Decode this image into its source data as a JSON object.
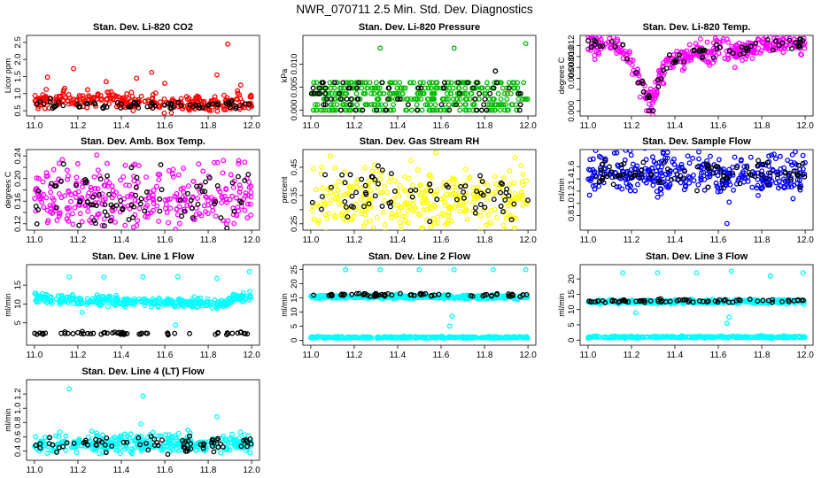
{
  "figure": {
    "title": "NWR_070711  2.5 Min. Std. Dev. Diagnostics"
  },
  "chart_data": [
    {
      "id": "co2",
      "type": "scatter",
      "title": "Stan. Dev. Li-820 CO2",
      "xlabel": "",
      "ylabel": "Licor ppm",
      "xlim": [
        10.98,
        12.02
      ],
      "ylim": [
        0.45,
        2.6
      ],
      "xticks": [
        11.0,
        11.2,
        11.4,
        11.6,
        11.8,
        12.0
      ],
      "yticks": [
        0.5,
        1.0,
        1.5,
        2.0,
        2.5
      ],
      "xtick_labels": [
        "11.0",
        "11.2",
        "11.4",
        "11.6",
        "11.8",
        "12.0"
      ],
      "ytick_labels": [
        "0.5",
        "1.0",
        "1.5",
        "2.0",
        "2.5"
      ],
      "series": [
        {
          "name": "color_band",
          "color": "#ff0000",
          "band": [
            0.72,
            0.08,
            0.35
          ],
          "spread": 0.1,
          "n": 300,
          "x": [
            11.06,
            11.18,
            11.47,
            11.54,
            11.6,
            11.84,
            11.89,
            11.95,
            11.33
          ],
          "y": [
            1.48,
            1.73,
            1.45,
            1.62,
            1.3,
            1.55,
            2.45,
            1.25,
            1.35
          ]
        },
        {
          "name": "black_band",
          "color": "#000000",
          "band": [
            0.66,
            0.0,
            0.03
          ],
          "spread": 0.06,
          "n": 70,
          "x": [],
          "y": []
        }
      ]
    },
    {
      "id": "pres",
      "type": "scatter",
      "title": "Stan. Dev. Li-820 Pressure",
      "xlabel": "",
      "ylabel": "kPa",
      "xlim": [
        10.98,
        12.02
      ],
      "ylim": [
        -0.0005,
        0.0155
      ],
      "xticks": [
        11.0,
        11.2,
        11.4,
        11.6,
        11.8,
        12.0
      ],
      "yticks": [
        0.0,
        0.005,
        0.01
      ],
      "xtick_labels": [
        "11.0",
        "11.2",
        "11.4",
        "11.6",
        "11.8",
        "12.0"
      ],
      "ytick_labels": [
        "0.000",
        "0.005",
        "0.010"
      ],
      "series": [
        {
          "name": "color_levels",
          "color": "#00bb00",
          "levels": [
            0.0,
            0.0012,
            0.0024,
            0.0036,
            0.0048,
            0.006
          ],
          "n": 400,
          "x": [
            11.32,
            11.66,
            11.99,
            11.85
          ],
          "y": [
            0.0135,
            0.0135,
            0.0145,
            0.0085
          ]
        },
        {
          "name": "black_levels",
          "color": "#000000",
          "levels": [
            0.0,
            0.0012,
            0.0024,
            0.0036,
            0.0048,
            0.006
          ],
          "n": 70,
          "x": [
            11.85
          ],
          "y": [
            0.0085
          ]
        }
      ]
    },
    {
      "id": "temp",
      "type": "scatter",
      "title": "Stan. Dev. Li-820 Temp.",
      "xlabel": "",
      "ylabel": "degrees C",
      "xlim": [
        10.98,
        12.02
      ],
      "ylim": [
        -0.0002,
        0.0132
      ],
      "xticks": [
        11.0,
        11.2,
        11.4,
        11.6,
        11.8,
        12.0
      ],
      "yticks": [
        0.0,
        0.002,
        0.004,
        0.006,
        0.008,
        0.01,
        0.012
      ],
      "xtick_labels": [
        "11.0",
        "11.2",
        "11.4",
        "11.6",
        "11.8",
        "12.0"
      ],
      "ytick_labels": [
        "0.000",
        "",
        "",
        "0.006",
        "0.008",
        "0.010",
        "0.012"
      ],
      "series": [
        {
          "name": "color_curve",
          "color": "#ff00ff",
          "curve": [
            [
              11.0,
              0.0122
            ],
            [
              11.12,
              0.0122
            ],
            [
              11.18,
              0.0104
            ],
            [
              11.23,
              0.0065
            ],
            [
              11.27,
              0.0032
            ],
            [
              11.3,
              0.0018
            ],
            [
              11.33,
              0.006
            ],
            [
              11.38,
              0.0092
            ],
            [
              11.45,
              0.0098
            ],
            [
              11.5,
              0.0114
            ],
            [
              11.56,
              0.0092
            ],
            [
              11.6,
              0.0122
            ],
            [
              11.68,
              0.0106
            ],
            [
              11.75,
              0.0116
            ],
            [
              11.8,
              0.0124
            ],
            [
              12.0,
              0.0124
            ]
          ],
          "noise": 0.0011,
          "n": 360,
          "x": [
            11.27,
            11.29,
            11.24
          ],
          "y": [
            0.0001,
            0.0002,
            0.0026
          ]
        },
        {
          "name": "black_curve",
          "color": "#000000",
          "curve": [
            [
              11.0,
              0.0122
            ],
            [
              11.12,
              0.0122
            ],
            [
              11.18,
              0.0104
            ],
            [
              11.23,
              0.0065
            ],
            [
              11.27,
              0.0032
            ],
            [
              11.3,
              0.0018
            ],
            [
              11.33,
              0.006
            ],
            [
              11.38,
              0.0092
            ],
            [
              11.45,
              0.0098
            ],
            [
              11.5,
              0.0114
            ],
            [
              11.56,
              0.0092
            ],
            [
              11.6,
              0.0122
            ],
            [
              11.68,
              0.0106
            ],
            [
              11.75,
              0.0116
            ],
            [
              11.8,
              0.0124
            ],
            [
              12.0,
              0.0124
            ]
          ],
          "noise": 0.0006,
          "n": 70,
          "x": [
            11.28,
            11.3
          ],
          "y": [
            0.0001,
            0.0001
          ]
        }
      ]
    },
    {
      "id": "box",
      "type": "scatter",
      "title": "Stan. Dev. Amb. Box Temp.",
      "xlabel": "",
      "ylabel": "degrees C",
      "xlim": [
        10.98,
        12.02
      ],
      "ylim": [
        0.115,
        0.245
      ],
      "xticks": [
        11.0,
        11.2,
        11.4,
        11.6,
        11.8,
        12.0
      ],
      "yticks": [
        0.12,
        0.14,
        0.16,
        0.18,
        0.2,
        0.22,
        0.24
      ],
      "xtick_labels": [
        "11.0",
        "11.2",
        "11.4",
        "11.6",
        "11.8",
        "12.0"
      ],
      "ytick_labels": [
        "0.12",
        "",
        "0.16",
        "",
        "0.20",
        "",
        "0.24"
      ],
      "series": [
        {
          "name": "color_band",
          "color": "#ff00ff",
          "band": [
            0.163,
            0.0,
            0.1
          ],
          "spread": 0.028,
          "n": 320,
          "x": [
            11.87,
            11.02,
            11.3,
            11.64
          ],
          "y": [
            0.232,
            0.2,
            0.205,
            0.203
          ]
        },
        {
          "name": "black_band",
          "color": "#000000",
          "band": [
            0.16,
            0.0,
            0.1
          ],
          "spread": 0.024,
          "n": 80,
          "x": [
            11.24,
            11.35
          ],
          "y": [
            0.195,
            0.125
          ]
        }
      ]
    },
    {
      "id": "rh",
      "type": "scatter",
      "title": "Stan. Dev. Gas Stream RH",
      "xlabel": "",
      "ylabel": "percent",
      "xlim": [
        10.98,
        12.02
      ],
      "ylim": [
        0.24,
        0.5
      ],
      "xticks": [
        11.0,
        11.2,
        11.4,
        11.6,
        11.8,
        12.0
      ],
      "yticks": [
        0.25,
        0.3,
        0.35,
        0.4,
        0.45
      ],
      "xtick_labels": [
        "11.0",
        "11.2",
        "11.4",
        "11.6",
        "11.8",
        "12.0"
      ],
      "ytick_labels": [
        "0.25",
        "",
        "0.35",
        "",
        "0.45"
      ],
      "series": [
        {
          "name": "color_band",
          "color": "#ffff00",
          "band": [
            0.33,
            0.0,
            0.1
          ],
          "spread": 0.05,
          "n": 320,
          "x": [
            11.09,
            11.05
          ],
          "y": [
            0.49,
            0.45
          ]
        },
        {
          "name": "black_band",
          "color": "#000000",
          "band": [
            0.34,
            0.0,
            0.1
          ],
          "spread": 0.04,
          "n": 70,
          "x": [
            11.31,
            11.33,
            11.78
          ],
          "y": [
            0.455,
            0.44,
            0.42
          ]
        }
      ]
    },
    {
      "id": "sflow",
      "type": "scatter",
      "title": "Stan. Dev. Sample Flow",
      "xlabel": "",
      "ylabel": "ml/min",
      "xlim": [
        10.98,
        12.02
      ],
      "ylim": [
        0.62,
        1.82
      ],
      "xticks": [
        11.0,
        11.2,
        11.4,
        11.6,
        11.8,
        12.0
      ],
      "yticks": [
        0.8,
        1.0,
        1.2,
        1.4,
        1.6
      ],
      "xtick_labels": [
        "11.0",
        "11.2",
        "11.4",
        "11.6",
        "11.8",
        "12.0"
      ],
      "ytick_labels": [
        "0.8",
        "1.0",
        "1.2",
        "1.4",
        "1.6"
      ],
      "series": [
        {
          "name": "color_band",
          "color": "#0000ff",
          "band": [
            1.45,
            0.0,
            0.2
          ],
          "spread": 0.14,
          "n": 360,
          "x": [
            11.64,
            11.65,
            11.06
          ],
          "y": [
            0.67,
            1.02,
            1.75
          ]
        },
        {
          "name": "black_band",
          "color": "#000000",
          "band": [
            1.45,
            0.0,
            0.2
          ],
          "spread": 0.1,
          "n": 80,
          "x": [
            11.99,
            11.97
          ],
          "y": [
            1.65,
            1.62
          ]
        }
      ]
    },
    {
      "id": "l1",
      "type": "scatter",
      "title": "Stan. Dev. Line 1 Flow",
      "xlabel": "",
      "ylabel": "ml/min",
      "xlim": [
        10.98,
        12.02
      ],
      "ylim": [
        0.0,
        19.5
      ],
      "xticks": [
        11.0,
        11.2,
        11.4,
        11.6,
        11.8,
        12.0
      ],
      "yticks": [
        5,
        10,
        15
      ],
      "xtick_labels": [
        "11.0",
        "11.2",
        "11.4",
        "11.6",
        "11.8",
        "12.0"
      ],
      "ytick_labels": [
        "5",
        "10",
        "15"
      ],
      "series": [
        {
          "name": "color_band",
          "color": "#00ffff",
          "curve": [
            [
              11.0,
              11.7
            ],
            [
              11.15,
              11.0
            ],
            [
              11.3,
              10.9
            ],
            [
              11.5,
              10.4
            ],
            [
              11.7,
              10.3
            ],
            [
              11.88,
              10.0
            ],
            [
              11.93,
              11.8
            ],
            [
              12.0,
              12.0
            ]
          ],
          "noise": 0.6,
          "n": 360,
          "x": [
            11.16,
            11.32,
            11.5,
            11.66,
            11.84,
            11.99,
            11.22,
            11.65
          ],
          "y": [
            17.2,
            17.2,
            17.2,
            17.3,
            16.8,
            18.6,
            7.8,
            4.4
          ]
        },
        {
          "name": "black_band",
          "color": "#000000",
          "band": [
            2.2,
            0.0,
            0.1
          ],
          "spread": 0.2,
          "n": 60,
          "x": [],
          "y": []
        }
      ]
    },
    {
      "id": "l2",
      "type": "scatter",
      "title": "Stan. Dev. Line 2 Flow",
      "xlabel": "",
      "ylabel": "ml/min",
      "xlim": [
        10.98,
        12.02
      ],
      "ylim": [
        -0.5,
        25.5
      ],
      "xticks": [
        11.0,
        11.2,
        11.4,
        11.6,
        11.8,
        12.0
      ],
      "yticks": [
        0,
        5,
        10,
        15,
        20,
        25
      ],
      "xtick_labels": [
        "11.0",
        "11.2",
        "11.4",
        "11.6",
        "11.8",
        "12.0"
      ],
      "ytick_labels": [
        "0",
        "5",
        "10",
        "15",
        "20",
        "25"
      ],
      "series": [
        {
          "name": "color_band",
          "color": "#00ffff",
          "band": [
            15.3,
            0.0,
            0.1
          ],
          "spread": 0.3,
          "n": 400,
          "x": [
            11.16,
            11.32,
            11.5,
            11.66,
            11.84,
            11.99,
            11.65,
            11.64
          ],
          "y": [
            25.0,
            25.0,
            25.0,
            25.0,
            25.0,
            25.0,
            8.5,
            5.0
          ]
        },
        {
          "name": "low_band",
          "color": "#00ffff",
          "band": [
            1.0,
            0.0,
            0.1
          ],
          "spread": 0.15,
          "n": 300,
          "x": [],
          "y": []
        },
        {
          "name": "black_band",
          "color": "#000000",
          "band": [
            16.0,
            0.0,
            0.1
          ],
          "spread": 0.25,
          "n": 70,
          "x": [],
          "y": []
        }
      ]
    },
    {
      "id": "l3",
      "type": "scatter",
      "title": "Stan. Dev. Line 3 Flow",
      "xlabel": "",
      "ylabel": "ml/min",
      "xlim": [
        10.98,
        12.02
      ],
      "ylim": [
        -0.5,
        23.5
      ],
      "xticks": [
        11.0,
        11.2,
        11.4,
        11.6,
        11.8,
        12.0
      ],
      "yticks": [
        0,
        5,
        10,
        15,
        20
      ],
      "xtick_labels": [
        "11.0",
        "11.2",
        "11.4",
        "11.6",
        "11.8",
        "12.0"
      ],
      "ytick_labels": [
        "0",
        "5",
        "10",
        "15",
        "20"
      ],
      "series": [
        {
          "name": "color_band",
          "color": "#00ffff",
          "band": [
            12.5,
            0.0,
            0.1
          ],
          "spread": 0.3,
          "n": 380,
          "x": [
            11.16,
            11.32,
            11.5,
            11.66,
            11.84,
            11.99,
            11.65,
            11.64,
            11.22
          ],
          "y": [
            22.0,
            22.0,
            22.0,
            22.5,
            21.0,
            22.0,
            7.5,
            5.5,
            9.0
          ]
        },
        {
          "name": "low_band",
          "color": "#00ffff",
          "band": [
            1.0,
            0.0,
            0.1
          ],
          "spread": 0.15,
          "n": 300,
          "x": [],
          "y": []
        },
        {
          "name": "black_band",
          "color": "#000000",
          "band": [
            12.8,
            0.0,
            0.1
          ],
          "spread": 0.25,
          "n": 70,
          "x": [],
          "y": []
        }
      ]
    },
    {
      "id": "l4",
      "type": "scatter",
      "title": "Stan. Dev. Line 4 (LT) Flow",
      "xlabel": "",
      "ylabel": "ml/min",
      "xlim": [
        10.98,
        12.02
      ],
      "ylim": [
        0.32,
        1.35
      ],
      "xticks": [
        11.0,
        11.2,
        11.4,
        11.6,
        11.8,
        12.0
      ],
      "yticks": [
        0.4,
        0.6,
        0.8,
        1.0,
        1.2
      ],
      "xtick_labels": [
        "11.0",
        "11.2",
        "11.4",
        "11.6",
        "11.8",
        "12.0"
      ],
      "ytick_labels": [
        "0.4",
        "0.6",
        "0.8",
        "1.0",
        "1.2"
      ],
      "series": [
        {
          "name": "color_band",
          "color": "#00ffff",
          "band": [
            0.5,
            0.0,
            0.1
          ],
          "spread": 0.06,
          "n": 340,
          "x": [
            11.16,
            11.5,
            11.84,
            11.49
          ],
          "y": [
            1.27,
            1.17,
            0.88,
            0.78
          ]
        },
        {
          "name": "black_band",
          "color": "#000000",
          "band": [
            0.48,
            0.0,
            0.1
          ],
          "spread": 0.05,
          "n": 70,
          "x": [
            11.33,
            11.07
          ],
          "y": [
            0.38,
            0.59
          ]
        }
      ]
    }
  ]
}
